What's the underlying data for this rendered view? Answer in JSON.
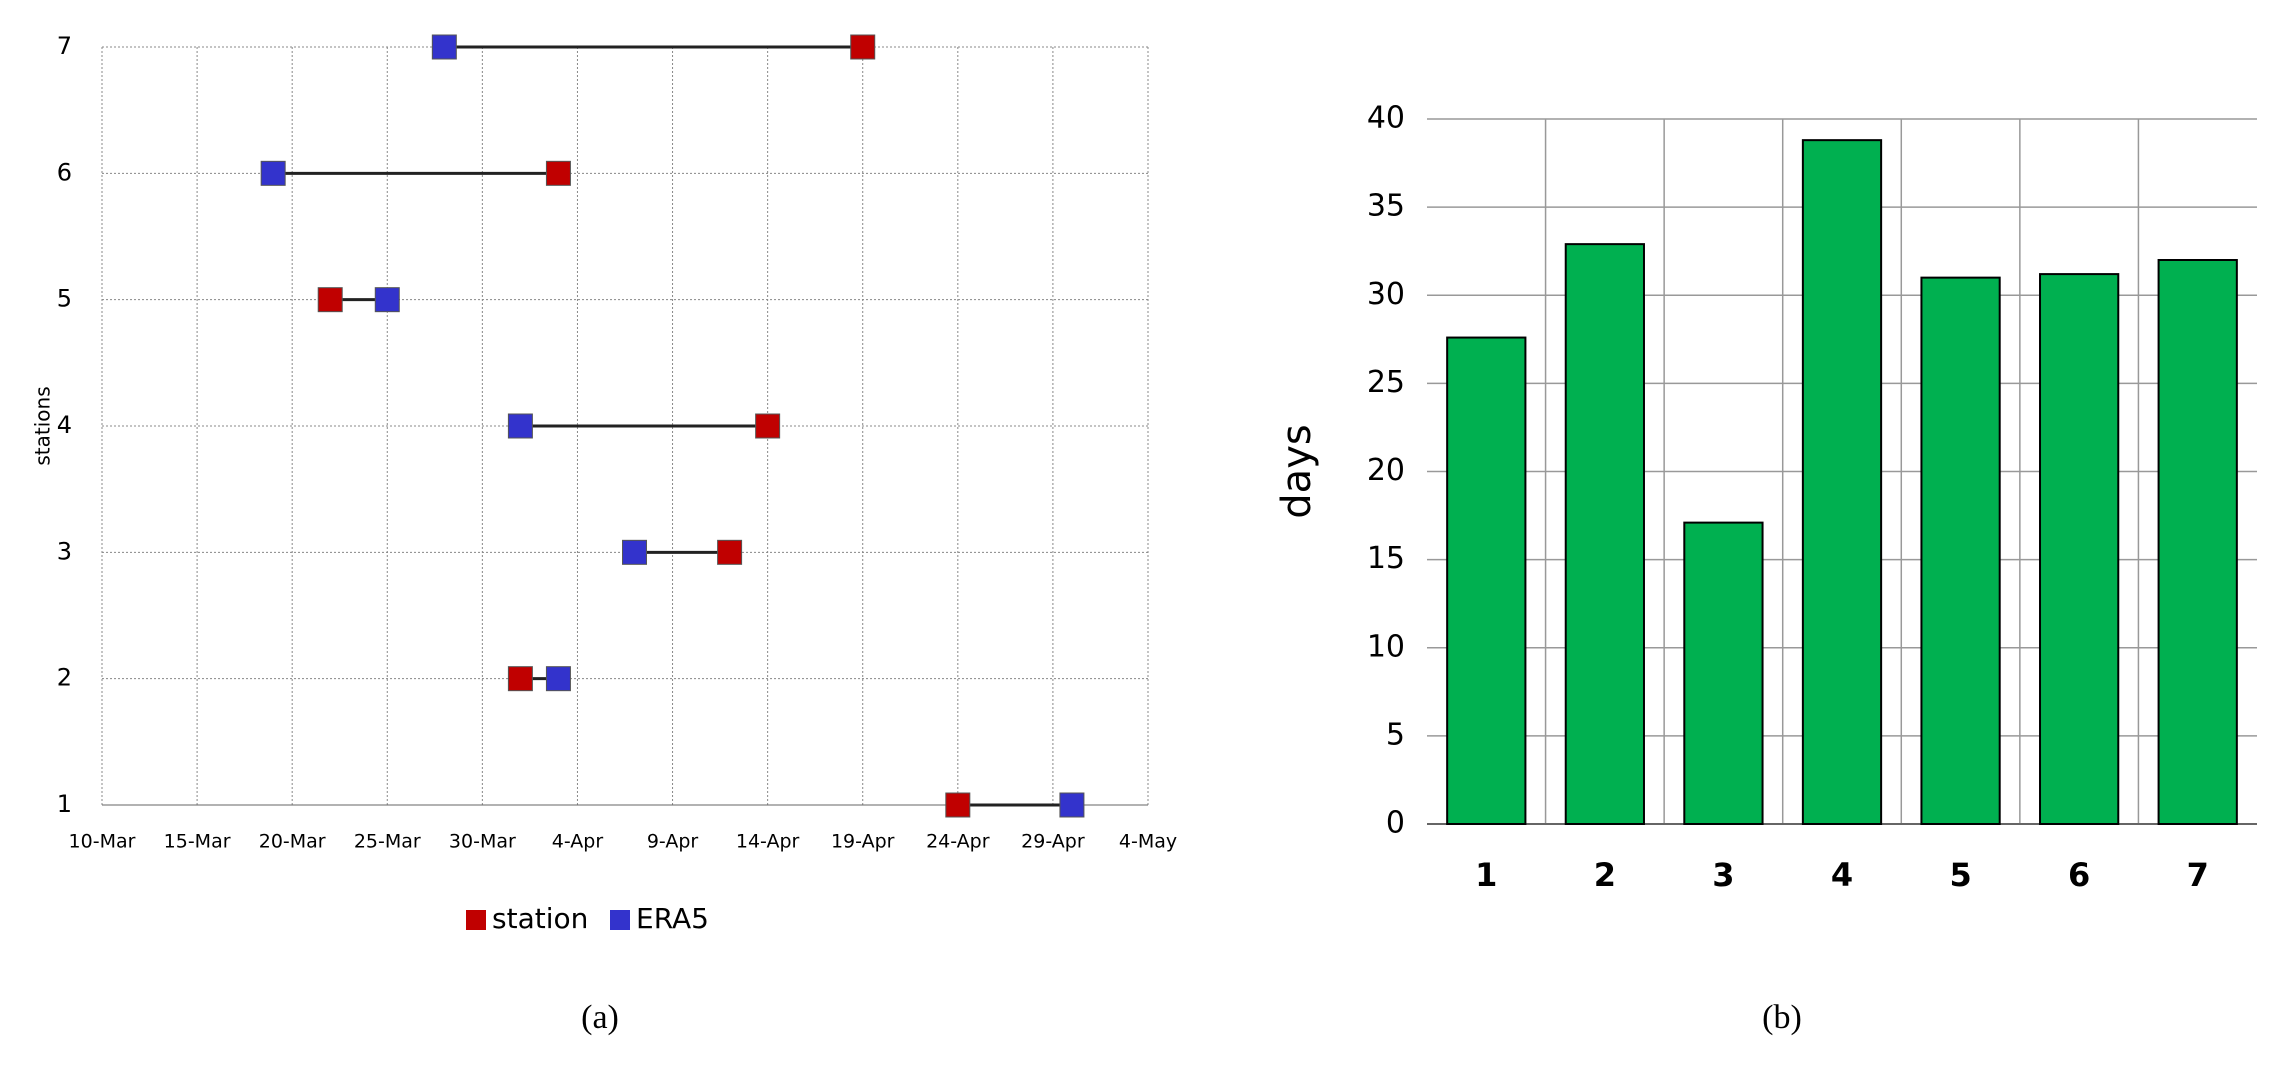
{
  "chart_data": [
    {
      "type": "dumbbell",
      "caption": "(a)",
      "y_label": "stations",
      "y": [
        1,
        2,
        3,
        4,
        5,
        6,
        7
      ],
      "series": [
        {
          "name": "station",
          "color": "#c00000",
          "x": [
            114,
            91,
            102,
            104,
            81,
            93,
            109
          ]
        },
        {
          "name": "ERA5",
          "color": "#3333cc",
          "x": [
            120,
            93,
            97,
            91,
            84,
            78,
            87
          ]
        }
      ],
      "xlim": [
        69,
        124
      ],
      "xticks": [
        {
          "value": 69,
          "label": "10-Mar"
        },
        {
          "value": 74,
          "label": "15-Mar"
        },
        {
          "value": 79,
          "label": "20-Mar"
        },
        {
          "value": 84,
          "label": "25-Mar"
        },
        {
          "value": 89,
          "label": "30-Mar"
        },
        {
          "value": 94,
          "label": "4-Apr"
        },
        {
          "value": 99,
          "label": "9-Apr"
        },
        {
          "value": 104,
          "label": "14-Apr"
        },
        {
          "value": 109,
          "label": "19-Apr"
        },
        {
          "value": 114,
          "label": "24-Apr"
        },
        {
          "value": 119,
          "label": "29-Apr"
        },
        {
          "value": 124,
          "label": "4-May"
        }
      ],
      "ylim": [
        1,
        7
      ],
      "yticks": [
        1,
        2,
        3,
        4,
        5,
        6,
        7
      ],
      "grid": true,
      "legend": "bottom"
    },
    {
      "type": "bar",
      "caption": "(b)",
      "y_label": "days",
      "categories": [
        "1",
        "2",
        "3",
        "4",
        "5",
        "6",
        "7"
      ],
      "values": [
        27.6,
        32.9,
        17.1,
        38.8,
        31,
        31.2,
        32
      ],
      "color": "#00b050",
      "ylim": [
        0,
        40
      ],
      "yticks": [
        0,
        5,
        10,
        15,
        20,
        25,
        30,
        35,
        40
      ],
      "grid": true
    }
  ]
}
